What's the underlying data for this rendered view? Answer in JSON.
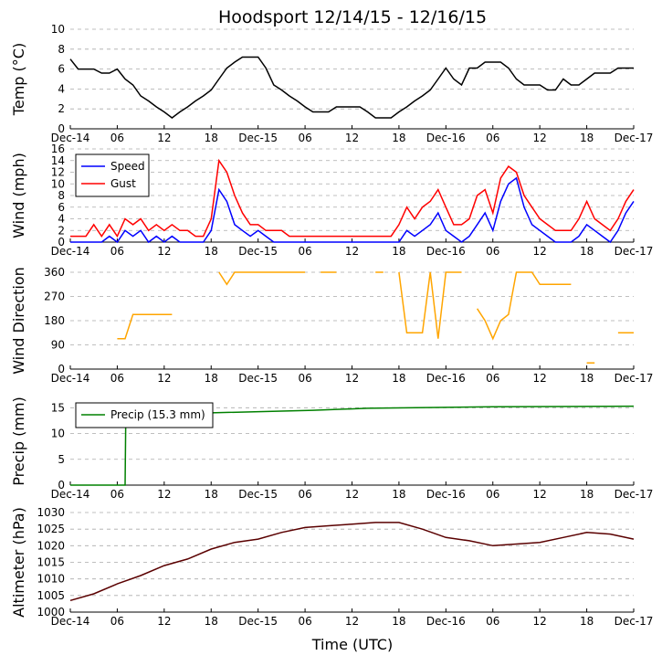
{
  "title": "Hoodsport 12/14/15 - 12/16/15",
  "x_label": "Time (UTC)",
  "chart_data": [
    {
      "type": "line",
      "y_label": "Temp (°C)",
      "xlim": [
        0,
        72
      ],
      "ylim": [
        0,
        10
      ],
      "yticks": [
        0,
        2,
        4,
        6,
        8,
        10
      ],
      "grid": true,
      "xticks": [
        {
          "value": 0,
          "label": "Dec-14"
        },
        {
          "value": 6,
          "label": "06"
        },
        {
          "value": 12,
          "label": "12"
        },
        {
          "value": 18,
          "label": "18"
        },
        {
          "value": 24,
          "label": "Dec-15"
        },
        {
          "value": 30,
          "label": "06"
        },
        {
          "value": 36,
          "label": "12"
        },
        {
          "value": 42,
          "label": "18"
        },
        {
          "value": 48,
          "label": "Dec-16"
        },
        {
          "value": 54,
          "label": "06"
        },
        {
          "value": 60,
          "label": "12"
        },
        {
          "value": 66,
          "label": "18"
        },
        {
          "value": 72,
          "label": "Dec-17"
        }
      ],
      "x": [
        0,
        1,
        2,
        3,
        4,
        5,
        6,
        7,
        8,
        9,
        10,
        11,
        12,
        13,
        14,
        15,
        16,
        17,
        18,
        19,
        20,
        21,
        22,
        23,
        24,
        25,
        26,
        27,
        28,
        29,
        30,
        31,
        32,
        33,
        34,
        35,
        36,
        37,
        38,
        39,
        40,
        41,
        42,
        43,
        44,
        45,
        46,
        47,
        48,
        49,
        50,
        51,
        52,
        53,
        54,
        55,
        56,
        57,
        58,
        59,
        60,
        61,
        62,
        63,
        64,
        65,
        66,
        67,
        68,
        69,
        70,
        71,
        72
      ],
      "series": [
        {
          "color": "#000000",
          "values": [
            7,
            6,
            6,
            6,
            5.6,
            5.6,
            6,
            5,
            4.4,
            3.3,
            2.8,
            2.2,
            1.7,
            1.1,
            1.7,
            2.2,
            2.8,
            3.3,
            3.9,
            5,
            6.1,
            6.7,
            7.2,
            7.2,
            7.2,
            6.1,
            4.4,
            3.9,
            3.3,
            2.8,
            2.2,
            1.7,
            1.7,
            1.7,
            2.2,
            2.2,
            2.2,
            2.2,
            1.7,
            1.1,
            1.1,
            1.1,
            1.7,
            2.2,
            2.8,
            3.3,
            3.9,
            5,
            6.1,
            5,
            4.4,
            6.1,
            6.1,
            6.7,
            6.7,
            6.7,
            6.1,
            5,
            4.4,
            4.4,
            4.4,
            3.9,
            3.9,
            5,
            4.4,
            4.4,
            5,
            5.6,
            5.6,
            5.6,
            6.1,
            6.1,
            6.1
          ]
        }
      ]
    },
    {
      "type": "line",
      "y_label": "Wind (mph)",
      "xlim": [
        0,
        72
      ],
      "ylim": [
        0,
        16
      ],
      "yticks": [
        0,
        2,
        4,
        6,
        8,
        10,
        12,
        14,
        16
      ],
      "grid": true,
      "legend": "upper left",
      "xticks": [
        {
          "value": 0,
          "label": "Dec-14"
        },
        {
          "value": 6,
          "label": "06"
        },
        {
          "value": 12,
          "label": "12"
        },
        {
          "value": 18,
          "label": "18"
        },
        {
          "value": 24,
          "label": "Dec-15"
        },
        {
          "value": 30,
          "label": "06"
        },
        {
          "value": 36,
          "label": "12"
        },
        {
          "value": 42,
          "label": "18"
        },
        {
          "value": 48,
          "label": "Dec-16"
        },
        {
          "value": 54,
          "label": "06"
        },
        {
          "value": 60,
          "label": "12"
        },
        {
          "value": 66,
          "label": "18"
        },
        {
          "value": 72,
          "label": "Dec-17"
        }
      ],
      "x": [
        0,
        1,
        2,
        3,
        4,
        5,
        6,
        7,
        8,
        9,
        10,
        11,
        12,
        13,
        14,
        15,
        16,
        17,
        18,
        19,
        20,
        21,
        22,
        23,
        24,
        25,
        26,
        27,
        28,
        29,
        30,
        31,
        32,
        33,
        34,
        35,
        36,
        37,
        38,
        39,
        40,
        41,
        42,
        43,
        44,
        45,
        46,
        47,
        48,
        49,
        50,
        51,
        52,
        53,
        54,
        55,
        56,
        57,
        58,
        59,
        60,
        61,
        62,
        63,
        64,
        65,
        66,
        67,
        68,
        69,
        70,
        71,
        72
      ],
      "series": [
        {
          "name": "Speed",
          "color": "#0000ff",
          "values": [
            0,
            0,
            0,
            0,
            0,
            1,
            0,
            2,
            1,
            2,
            0,
            1,
            0,
            1,
            0,
            0,
            0,
            0,
            2,
            9,
            7,
            3,
            2,
            1,
            2,
            1,
            0,
            0,
            0,
            0,
            0,
            0,
            0,
            0,
            0,
            0,
            0,
            0,
            0,
            0,
            0,
            0,
            0,
            2,
            1,
            2,
            3,
            5,
            2,
            1,
            0,
            1,
            3,
            5,
            2,
            7,
            10,
            11,
            6,
            3,
            2,
            1,
            0,
            0,
            0,
            1,
            3,
            2,
            1,
            0,
            2,
            5,
            7
          ]
        },
        {
          "name": "Gust",
          "color": "#ff0000",
          "values": [
            1,
            1,
            1,
            3,
            1,
            3,
            1,
            4,
            3,
            4,
            2,
            3,
            2,
            3,
            2,
            2,
            1,
            1,
            4,
            14,
            12,
            8,
            5,
            3,
            3,
            2,
            2,
            2,
            1,
            1,
            1,
            1,
            1,
            1,
            1,
            1,
            1,
            1,
            1,
            1,
            1,
            1,
            3,
            6,
            4,
            6,
            7,
            9,
            6,
            3,
            3,
            4,
            8,
            9,
            5,
            11,
            13,
            12,
            8,
            6,
            4,
            3,
            2,
            2,
            2,
            4,
            7,
            4,
            3,
            2,
            4,
            7,
            9
          ]
        }
      ]
    },
    {
      "type": "line",
      "y_label": "Wind Direction",
      "xlim": [
        0,
        72
      ],
      "ylim": [
        0,
        360
      ],
      "yticks": [
        0,
        90,
        180,
        270,
        360
      ],
      "grid": true,
      "xticks": [
        {
          "value": 0,
          "label": "Dec-14"
        },
        {
          "value": 6,
          "label": "06"
        },
        {
          "value": 12,
          "label": "12"
        },
        {
          "value": 18,
          "label": "18"
        },
        {
          "value": 24,
          "label": "Dec-15"
        },
        {
          "value": 30,
          "label": "06"
        },
        {
          "value": 36,
          "label": "12"
        },
        {
          "value": 42,
          "label": "18"
        },
        {
          "value": 48,
          "label": "Dec-16"
        },
        {
          "value": 54,
          "label": "06"
        },
        {
          "value": 60,
          "label": "12"
        },
        {
          "value": 66,
          "label": "18"
        },
        {
          "value": 72,
          "label": "Dec-17"
        }
      ],
      "x": [
        0,
        1,
        2,
        3,
        4,
        5,
        6,
        7,
        8,
        9,
        10,
        11,
        12,
        13,
        14,
        15,
        16,
        17,
        18,
        19,
        20,
        21,
        22,
        23,
        24,
        25,
        26,
        27,
        28,
        29,
        30,
        31,
        32,
        33,
        34,
        35,
        36,
        37,
        38,
        39,
        40,
        41,
        42,
        43,
        44,
        45,
        46,
        47,
        48,
        49,
        50,
        51,
        52,
        53,
        54,
        55,
        56,
        57,
        58,
        59,
        60,
        61,
        62,
        63,
        64,
        65,
        66,
        67,
        68,
        69,
        70,
        71,
        72
      ],
      "series": [
        {
          "color": "#ffa500",
          "values": [
            null,
            null,
            null,
            null,
            null,
            null,
            113,
            113,
            203,
            203,
            203,
            203,
            203,
            203,
            null,
            null,
            null,
            null,
            null,
            360,
            315,
            360,
            360,
            360,
            360,
            360,
            360,
            360,
            360,
            360,
            360,
            null,
            360,
            360,
            360,
            null,
            360,
            null,
            null,
            360,
            360,
            null,
            360,
            135,
            135,
            135,
            360,
            113,
            360,
            360,
            360,
            null,
            225,
            180,
            113,
            180,
            203,
            360,
            360,
            360,
            315,
            315,
            315,
            315,
            315,
            null,
            23,
            23,
            null,
            null,
            135,
            135,
            135
          ]
        }
      ]
    },
    {
      "type": "line",
      "y_label": "Precip (mm)",
      "xlim": [
        0,
        72
      ],
      "ylim": [
        0,
        17
      ],
      "yticks": [
        0,
        5,
        10,
        15
      ],
      "grid": true,
      "legend": "upper left",
      "xticks": [
        {
          "value": 0,
          "label": "Dec-14"
        },
        {
          "value": 6,
          "label": "06"
        },
        {
          "value": 12,
          "label": "12"
        },
        {
          "value": 18,
          "label": "18"
        },
        {
          "value": 24,
          "label": "Dec-15"
        },
        {
          "value": 30,
          "label": "06"
        },
        {
          "value": 36,
          "label": "12"
        },
        {
          "value": 42,
          "label": "18"
        },
        {
          "value": 48,
          "label": "Dec-16"
        },
        {
          "value": 54,
          "label": "06"
        },
        {
          "value": 60,
          "label": "12"
        },
        {
          "value": 66,
          "label": "18"
        },
        {
          "value": 72,
          "label": "Dec-17"
        }
      ],
      "x": [
        0,
        7,
        7.1,
        18,
        31,
        38,
        54,
        72
      ],
      "series": [
        {
          "name": "Precip (15.3 mm)",
          "color": "#008000",
          "values": [
            0,
            0,
            14,
            14,
            14.5,
            14.9,
            15.2,
            15.3
          ]
        }
      ]
    },
    {
      "type": "line",
      "y_label": "Altimeter (hPa)",
      "xlim": [
        0,
        72
      ],
      "ylim": [
        1000,
        1030
      ],
      "yticks": [
        1000,
        1005,
        1010,
        1015,
        1020,
        1025,
        1030
      ],
      "grid": true,
      "xticks": [
        {
          "value": 0,
          "label": "Dec-14"
        },
        {
          "value": 6,
          "label": "06"
        },
        {
          "value": 12,
          "label": "12"
        },
        {
          "value": 18,
          "label": "18"
        },
        {
          "value": 24,
          "label": "Dec-15"
        },
        {
          "value": 30,
          "label": "06"
        },
        {
          "value": 36,
          "label": "12"
        },
        {
          "value": 42,
          "label": "18"
        },
        {
          "value": 48,
          "label": "Dec-16"
        },
        {
          "value": 54,
          "label": "06"
        },
        {
          "value": 60,
          "label": "12"
        },
        {
          "value": 66,
          "label": "18"
        },
        {
          "value": 72,
          "label": "Dec-17"
        }
      ],
      "x": [
        0,
        3,
        6,
        9,
        12,
        15,
        18,
        21,
        24,
        27,
        30,
        33,
        36,
        39,
        42,
        45,
        48,
        51,
        54,
        57,
        60,
        63,
        66,
        69,
        72
      ],
      "series": [
        {
          "color": "#5a0000",
          "values": [
            1003.5,
            1005.5,
            1008.5,
            1011,
            1014,
            1016,
            1019,
            1021,
            1022,
            1024,
            1025.5,
            1026,
            1026.5,
            1027,
            1027,
            1025,
            1022.5,
            1021.5,
            1020,
            1020.5,
            1021,
            1022.5,
            1024,
            1023.5,
            1022
          ]
        }
      ]
    }
  ]
}
